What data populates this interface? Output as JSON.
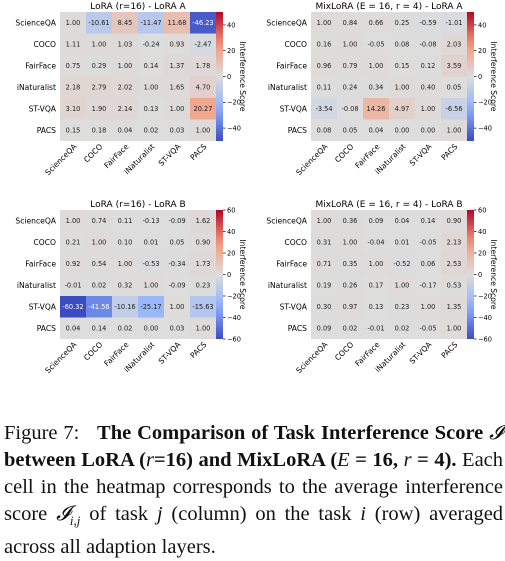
{
  "rows": [
    "ScienceQA",
    "COCO",
    "FairFace",
    "iNaturalist",
    "ST-VQA",
    "PACS"
  ],
  "cols": [
    "ScienceQA",
    "COCO",
    "FairFace",
    "iNaturalist",
    "ST-VQA",
    "PACS"
  ],
  "colorbar_label": "Interference Score",
  "caption": {
    "fig": "Figure 7:",
    "bold_a": "The Comparison of Task Interference Score",
    "sym": "𝓘",
    "bold_b": "between LoRA (",
    "r_sym": "r",
    "bold_c": "=16) and MixLoRA (",
    "e_sym": "E",
    "bold_d": "= 16,",
    "bold_e": "= 4).",
    "plain_a": "Each cell in the heatmap corresponds to the average interference score",
    "sub_sym": "𝓘",
    "sub_txt": "i,j",
    "plain_b": "of task",
    "j_sym": "j",
    "plain_c": "(column) on the task",
    "i_sym": "i",
    "plain_d": "(row) averaged across all adaption layers."
  },
  "chart_data": [
    {
      "type": "heatmap",
      "title": "LoRA (r=16) - LoRA A",
      "vmin": -50,
      "vmax": 50,
      "colorbar_ticks": [
        -40,
        -20,
        0,
        20,
        40
      ],
      "values": [
        [
          1.0,
          -10.61,
          8.45,
          -11.47,
          11.68,
          -46.23
        ],
        [
          1.11,
          1.0,
          1.03,
          -0.24,
          0.93,
          -2.47
        ],
        [
          0.75,
          0.29,
          1.0,
          0.14,
          1.37,
          1.78
        ],
        [
          2.18,
          2.79,
          2.02,
          1.0,
          1.65,
          4.7
        ],
        [
          3.1,
          1.9,
          2.14,
          0.13,
          1.0,
          20.27
        ],
        [
          0.15,
          0.18,
          0.04,
          0.02,
          0.03,
          1.0
        ]
      ]
    },
    {
      "type": "heatmap",
      "title": "MixLoRA (E = 16, r = 4) - LoRA A",
      "vmin": -50,
      "vmax": 50,
      "colorbar_ticks": [
        -40,
        -20,
        0,
        20,
        40
      ],
      "values": [
        [
          1.0,
          0.84,
          0.66,
          0.25,
          -0.59,
          -1.01
        ],
        [
          0.16,
          1.0,
          -0.05,
          0.08,
          -0.08,
          2.03
        ],
        [
          0.96,
          0.79,
          1.0,
          0.15,
          0.12,
          3.59
        ],
        [
          0.11,
          0.24,
          0.34,
          1.0,
          0.4,
          0.05
        ],
        [
          -3.54,
          -0.08,
          14.26,
          4.97,
          1.0,
          -6.56
        ],
        [
          0.08,
          0.05,
          0.04,
          0.0,
          0.0,
          1.0
        ]
      ]
    },
    {
      "type": "heatmap",
      "title": "LoRA (r=16) - LoRA B",
      "vmin": -60,
      "vmax": 60,
      "colorbar_ticks": [
        -60,
        -40,
        -20,
        0,
        20,
        40,
        60
      ],
      "values": [
        [
          1.0,
          0.74,
          0.11,
          -0.13,
          -0.09,
          1.62
        ],
        [
          0.21,
          1.0,
          0.1,
          0.01,
          0.05,
          0.9
        ],
        [
          0.92,
          0.54,
          1.0,
          -0.53,
          -0.34,
          1.73
        ],
        [
          -0.01,
          0.02,
          0.32,
          1.0,
          -0.09,
          0.23
        ],
        [
          -60.32,
          -41.56,
          -10.16,
          -25.17,
          1.0,
          -15.63
        ],
        [
          0.04,
          0.14,
          0.02,
          -0.0,
          0.03,
          1.0
        ]
      ]
    },
    {
      "type": "heatmap",
      "title": "MixLoRA (E = 16, r = 4) - LoRA B",
      "vmin": -60,
      "vmax": 60,
      "colorbar_ticks": [
        -60,
        -40,
        -20,
        0,
        20,
        40,
        60
      ],
      "values": [
        [
          1.0,
          0.36,
          0.09,
          0.04,
          0.14,
          0.9
        ],
        [
          0.31,
          1.0,
          -0.04,
          0.01,
          -0.05,
          2.13
        ],
        [
          0.71,
          0.35,
          1.0,
          -0.52,
          0.06,
          2.53
        ],
        [
          0.19,
          0.26,
          0.17,
          1.0,
          -0.17,
          0.53
        ],
        [
          0.3,
          0.97,
          0.13,
          0.23,
          1.0,
          1.35
        ],
        [
          0.09,
          0.02,
          -0.01,
          0.02,
          -0.05,
          1.0
        ]
      ]
    }
  ]
}
